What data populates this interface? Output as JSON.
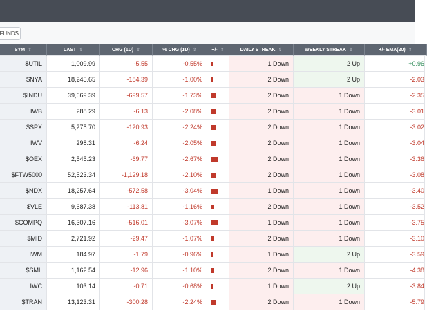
{
  "toolbar": {
    "button": "FUNDS"
  },
  "table": {
    "columns": [
      "SYM",
      "LAST",
      "CHG (1D)",
      "% CHG (1D)",
      "+/-",
      "DAILY STREAK",
      "WEEKLY STREAK",
      "+/- EMA(20)"
    ],
    "rows": [
      [
        "$UTIL",
        "1,009.99",
        "-5.55",
        "-0.55%",
        "1 Down",
        "2 Up",
        "+0.96"
      ],
      [
        "$NYA",
        "18,245.65",
        "-184.39",
        "-1.00%",
        "2 Down",
        "2 Up",
        "-2.03"
      ],
      [
        "$INDU",
        "39,669.39",
        "-699.57",
        "-1.73%",
        "2 Down",
        "1 Down",
        "-2.35"
      ],
      [
        "IWB",
        "288.29",
        "-6.13",
        "-2.08%",
        "2 Down",
        "1 Down",
        "-3.01"
      ],
      [
        "$SPX",
        "5,275.70",
        "-120.93",
        "-2.24%",
        "2 Down",
        "1 Down",
        "-3.02"
      ],
      [
        "IWV",
        "298.31",
        "-6.24",
        "-2.05%",
        "2 Down",
        "1 Down",
        "-3.04"
      ],
      [
        "$OEX",
        "2,545.23",
        "-69.77",
        "-2.67%",
        "2 Down",
        "1 Down",
        "-3.36"
      ],
      [
        "$FTW5000",
        "52,523.34",
        "-1,129.18",
        "-2.10%",
        "2 Down",
        "1 Down",
        "-3.08"
      ],
      [
        "$NDX",
        "18,257.64",
        "-572.58",
        "-3.04%",
        "1 Down",
        "1 Down",
        "-3.40"
      ],
      [
        "$VLE",
        "9,687.38",
        "-113.81",
        "-1.16%",
        "2 Down",
        "1 Down",
        "-3.52"
      ],
      [
        "$COMPQ",
        "16,307.16",
        "-516.01",
        "-3.07%",
        "1 Down",
        "1 Down",
        "-3.75"
      ],
      [
        "$MID",
        "2,721.92",
        "-29.47",
        "-1.07%",
        "2 Down",
        "1 Down",
        "-3.10"
      ],
      [
        "IWM",
        "184.97",
        "-1.79",
        "-0.96%",
        "1 Down",
        "2 Up",
        "-3.59"
      ],
      [
        "$SML",
        "1,162.54",
        "-12.96",
        "-1.10%",
        "2 Down",
        "1 Down",
        "-4.38"
      ],
      [
        "IWC",
        "103.14",
        "-0.71",
        "-0.68%",
        "1 Down",
        "2 Up",
        "-3.84"
      ],
      [
        "$TRAN",
        "13,123.31",
        "-300.28",
        "-2.24%",
        "2 Down",
        "1 Down",
        "-5.79"
      ]
    ]
  }
}
